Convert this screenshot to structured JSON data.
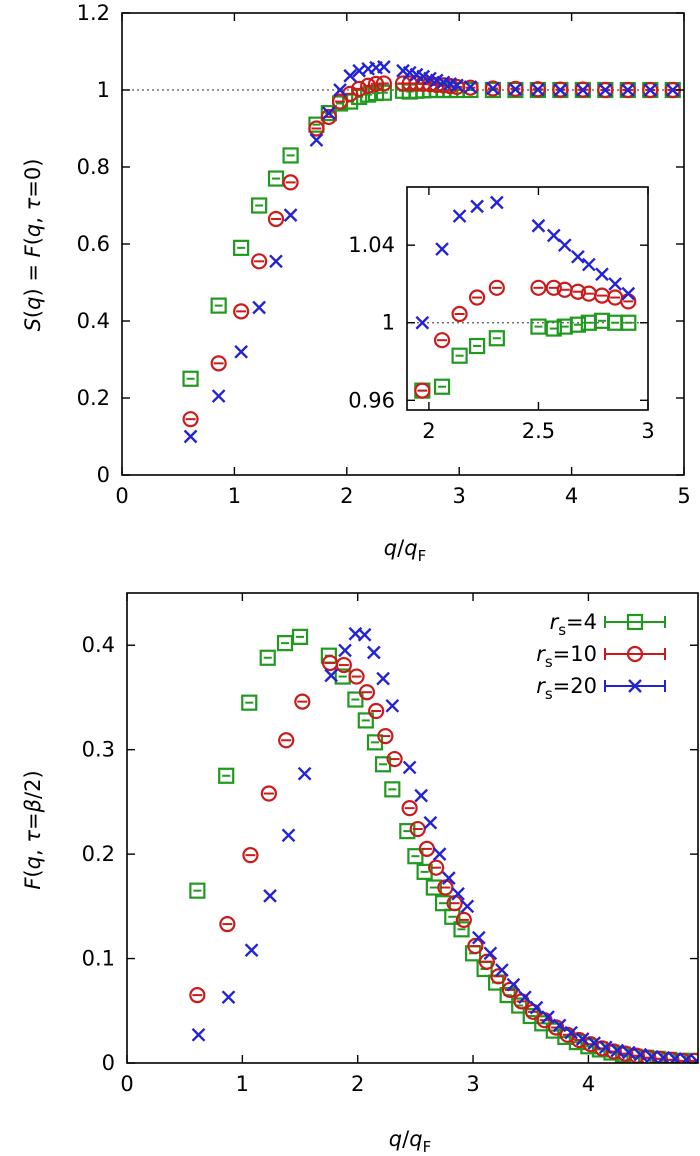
{
  "chart_data": [
    {
      "type": "scatter",
      "title": "",
      "xlabel": "q/q_F",
      "ylabel": "S(q) = F(q, τ=0)",
      "xlim": [
        0,
        5
      ],
      "ylim": [
        0,
        1.2
      ],
      "xticks": [
        "0",
        "1",
        "2",
        "3",
        "4",
        "5"
      ],
      "yticks": [
        "0",
        "0.2",
        "0.4",
        "0.6",
        "0.8",
        "1",
        "1.2"
      ],
      "reference_line": {
        "y": 1,
        "style": "dotted"
      },
      "series": [
        {
          "color": "#1f9a1f",
          "marker": "square",
          "x": [
            0.61,
            0.86,
            1.06,
            1.22,
            1.37,
            1.5,
            1.73,
            1.84,
            1.94,
            2.03,
            2.11,
            2.19,
            2.26,
            2.33,
            2.5,
            2.56,
            2.62,
            2.68,
            2.74,
            2.8,
            2.86,
            2.92,
            2.98,
            3.1,
            3.3,
            3.5,
            3.7,
            3.9,
            4.1,
            4.3,
            4.5,
            4.7,
            4.9
          ],
          "y": [
            0.25,
            0.44,
            0.59,
            0.7,
            0.77,
            0.83,
            0.91,
            0.94,
            0.965,
            0.97,
            0.982,
            0.988,
            0.992,
            0.993,
            0.998,
            0.996,
            0.998,
            0.999,
            1.0,
            1.0,
            1.0,
            1.0,
            1.0,
            1.0,
            1.0,
            1.0,
            1.0,
            1.0,
            1.0,
            1.0,
            1.0,
            1.0,
            1.0
          ]
        },
        {
          "color": "#cc1a1a",
          "marker": "circle",
          "x": [
            0.61,
            0.86,
            1.06,
            1.22,
            1.37,
            1.5,
            1.73,
            1.84,
            1.94,
            2.03,
            2.11,
            2.19,
            2.26,
            2.33,
            2.5,
            2.56,
            2.62,
            2.68,
            2.74,
            2.8,
            2.86,
            2.92,
            2.98,
            3.1,
            3.3,
            3.5,
            3.7,
            3.9,
            4.1,
            4.3,
            4.5,
            4.7,
            4.9
          ],
          "y": [
            0.145,
            0.29,
            0.425,
            0.555,
            0.665,
            0.76,
            0.9,
            0.93,
            0.97,
            0.99,
            1.003,
            1.011,
            1.016,
            1.017,
            1.017,
            1.017,
            1.017,
            1.016,
            1.015,
            1.013,
            1.012,
            1.01,
            1.008,
            1.006,
            1.004,
            1.003,
            1.002,
            1.001,
            1.001,
            1.0,
            1.0,
            1.0,
            1.0
          ]
        },
        {
          "color": "#2323d6",
          "marker": "x",
          "x": [
            0.61,
            0.86,
            1.06,
            1.22,
            1.37,
            1.5,
            1.73,
            1.84,
            1.94,
            2.03,
            2.11,
            2.19,
            2.26,
            2.33,
            2.5,
            2.56,
            2.62,
            2.68,
            2.74,
            2.8,
            2.86,
            2.92,
            2.98,
            3.1,
            3.3,
            3.5,
            3.7,
            3.9,
            4.1,
            4.3,
            4.5,
            4.7,
            4.9
          ],
          "y": [
            0.1,
            0.205,
            0.32,
            0.435,
            0.555,
            0.675,
            0.87,
            0.94,
            1.0,
            1.037,
            1.05,
            1.055,
            1.058,
            1.06,
            1.05,
            1.045,
            1.04,
            1.035,
            1.03,
            1.025,
            1.02,
            1.016,
            1.012,
            1.008,
            1.004,
            1.002,
            1.001,
            1.0,
            1.0,
            1.0,
            1.0,
            1.0,
            1.0
          ]
        }
      ]
    },
    {
      "type": "scatter",
      "title": "",
      "inset": true,
      "xlim": [
        1.9,
        3.0
      ],
      "ylim": [
        0.955,
        1.07
      ],
      "xticks": [
        "2",
        "2.5",
        "3"
      ],
      "yticks": [
        "0.96",
        "1",
        "1.04"
      ],
      "reference_line": {
        "y": 1,
        "style": "dotted"
      },
      "series": [
        {
          "color": "#1f9a1f",
          "marker": "square",
          "x": [
            1.97,
            2.06,
            2.14,
            2.22,
            2.31,
            2.5,
            2.57,
            2.62,
            2.68,
            2.73,
            2.79,
            2.85,
            2.91
          ],
          "y": [
            0.965,
            0.967,
            0.983,
            0.988,
            0.992,
            0.998,
            0.997,
            0.998,
            0.999,
            1.0,
            1.001,
            1.0,
            1.0
          ]
        },
        {
          "color": "#cc1a1a",
          "marker": "circle",
          "x": [
            1.97,
            2.06,
            2.14,
            2.22,
            2.31,
            2.5,
            2.57,
            2.62,
            2.68,
            2.73,
            2.79,
            2.85,
            2.91
          ],
          "y": [
            0.965,
            0.991,
            1.0045,
            1.013,
            1.018,
            1.018,
            1.018,
            1.017,
            1.016,
            1.015,
            1.014,
            1.013,
            1.011
          ]
        },
        {
          "color": "#2323d6",
          "marker": "x",
          "x": [
            1.97,
            2.06,
            2.14,
            2.22,
            2.31,
            2.5,
            2.57,
            2.62,
            2.68,
            2.73,
            2.79,
            2.85,
            2.91
          ],
          "y": [
            1.0,
            1.038,
            1.055,
            1.06,
            1.062,
            1.05,
            1.045,
            1.04,
            1.034,
            1.03,
            1.025,
            1.02,
            1.015
          ]
        }
      ]
    },
    {
      "type": "scatter",
      "title": "",
      "xlabel": "q/q_F",
      "ylabel": "F(q, τ=β/2)",
      "xlim": [
        0,
        4.95
      ],
      "ylim": [
        0,
        0.45
      ],
      "xticks": [
        "0",
        "1",
        "2",
        "3",
        "4"
      ],
      "yticks": [
        "0",
        "0.1",
        "0.2",
        "0.3",
        "0.4"
      ],
      "legend_position": "top-right",
      "series": [
        {
          "name": "rs=4",
          "color": "#1f9a1f",
          "marker": "square",
          "x": [
            0.61,
            0.86,
            1.06,
            1.22,
            1.37,
            1.5,
            1.75,
            1.87,
            1.98,
            2.07,
            2.15,
            2.22,
            2.3,
            2.43,
            2.5,
            2.58,
            2.66,
            2.74,
            2.82,
            2.9,
            3.0,
            3.1,
            3.2,
            3.3,
            3.4,
            3.5,
            3.6,
            3.7,
            3.8,
            3.9,
            4.0,
            4.1,
            4.2,
            4.3,
            4.4,
            4.5,
            4.6,
            4.7,
            4.8,
            4.9
          ],
          "y": [
            0.165,
            0.275,
            0.345,
            0.388,
            0.402,
            0.408,
            0.39,
            0.37,
            0.348,
            0.328,
            0.307,
            0.286,
            0.262,
            0.222,
            0.198,
            0.183,
            0.168,
            0.153,
            0.14,
            0.128,
            0.105,
            0.09,
            0.077,
            0.065,
            0.055,
            0.045,
            0.038,
            0.031,
            0.025,
            0.02,
            0.016,
            0.013,
            0.01,
            0.008,
            0.006,
            0.005,
            0.004,
            0.003,
            0.002,
            0.002
          ]
        },
        {
          "name": "rs=10",
          "color": "#cc1a1a",
          "marker": "circle",
          "x": [
            0.61,
            0.87,
            1.07,
            1.23,
            1.38,
            1.52,
            1.76,
            1.88,
            1.99,
            2.08,
            2.16,
            2.24,
            2.32,
            2.45,
            2.52,
            2.6,
            2.68,
            2.76,
            2.84,
            2.92,
            3.02,
            3.12,
            3.22,
            3.32,
            3.42,
            3.52,
            3.62,
            3.72,
            3.82,
            3.92,
            4.02,
            4.12,
            4.22,
            4.32,
            4.42,
            4.52,
            4.62,
            4.72,
            4.82,
            4.92
          ],
          "y": [
            0.065,
            0.133,
            0.199,
            0.258,
            0.309,
            0.346,
            0.383,
            0.381,
            0.37,
            0.355,
            0.337,
            0.313,
            0.291,
            0.244,
            0.224,
            0.205,
            0.187,
            0.168,
            0.153,
            0.137,
            0.112,
            0.097,
            0.083,
            0.07,
            0.059,
            0.049,
            0.041,
            0.034,
            0.027,
            0.022,
            0.018,
            0.014,
            0.011,
            0.009,
            0.007,
            0.005,
            0.004,
            0.003,
            0.002,
            0.002
          ]
        },
        {
          "name": "rs=20",
          "color": "#2323d6",
          "marker": "x",
          "x": [
            0.62,
            0.88,
            1.08,
            1.24,
            1.4,
            1.54,
            1.77,
            1.89,
            1.98,
            2.06,
            2.14,
            2.22,
            2.3,
            2.45,
            2.55,
            2.63,
            2.71,
            2.79,
            2.87,
            2.95,
            3.05,
            3.15,
            3.25,
            3.35,
            3.45,
            3.55,
            3.65,
            3.75,
            3.85,
            3.95,
            4.05,
            4.15,
            4.25,
            4.35,
            4.45,
            4.55,
            4.65,
            4.75,
            4.85,
            4.94
          ],
          "y": [
            0.027,
            0.063,
            0.108,
            0.16,
            0.218,
            0.277,
            0.371,
            0.395,
            0.411,
            0.41,
            0.393,
            0.368,
            0.342,
            0.283,
            0.256,
            0.23,
            0.2,
            0.177,
            0.162,
            0.15,
            0.12,
            0.105,
            0.089,
            0.075,
            0.063,
            0.053,
            0.044,
            0.036,
            0.029,
            0.023,
            0.019,
            0.015,
            0.012,
            0.01,
            0.008,
            0.006,
            0.005,
            0.004,
            0.003,
            0.002
          ]
        }
      ]
    }
  ]
}
